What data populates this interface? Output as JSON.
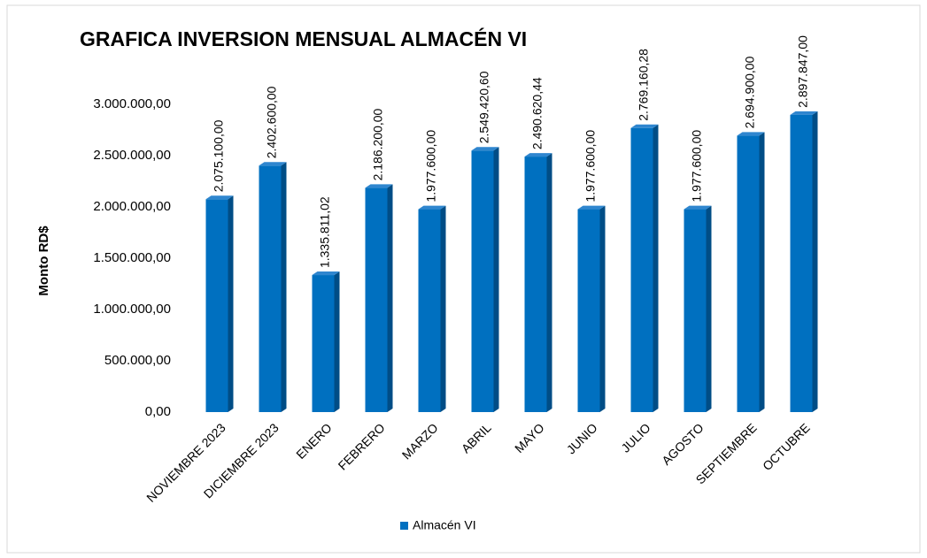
{
  "chart_data": {
    "type": "bar3d",
    "title": "GRAFICA INVERSION MENSUAL ALMACÉN VI",
    "y_label": "Monto RD$",
    "categories": [
      "NOVIEMBRE 2023",
      "DICIEMBRE 2023",
      "ENERO",
      "FEBRERO",
      "MARZO",
      "ABRIL",
      "MAYO",
      "JUNIO",
      "JULIO",
      "AGOSTO",
      "SEPTIEMBRE",
      "OCTUBRE"
    ],
    "series": [
      {
        "name": "Almacén VI",
        "color": "#0070c0",
        "values": [
          2075100,
          2402600,
          1335811.02,
          2186200,
          1977600,
          2549420.6,
          2490620.44,
          1977600,
          2769160.28,
          1977600,
          2694900,
          2897847
        ],
        "value_labels": [
          "2.075.100,00",
          "2.402.600,00",
          "1.335.811,02",
          "2.186.200,00",
          "1.977.600,00",
          "2.549.420,60",
          "2.490.620,44",
          "1.977.600,00",
          "2.769.160,28",
          "1.977.600,00",
          "2.694.900,00",
          "2.897.847,00"
        ]
      }
    ],
    "ylim": [
      0,
      3000000
    ],
    "yticks": [
      {
        "value": 0,
        "label": "0,00"
      },
      {
        "value": 500000,
        "label": "500.000,00"
      },
      {
        "value": 1000000,
        "label": "1.000.000,00"
      },
      {
        "value": 1500000,
        "label": "1.500.000,00"
      },
      {
        "value": 2000000,
        "label": "2.000.000,00"
      },
      {
        "value": 2500000,
        "label": "2.500.000,00"
      },
      {
        "value": 3000000,
        "label": "3.000.000,00"
      }
    ],
    "grid": false,
    "legend": "bottom"
  }
}
